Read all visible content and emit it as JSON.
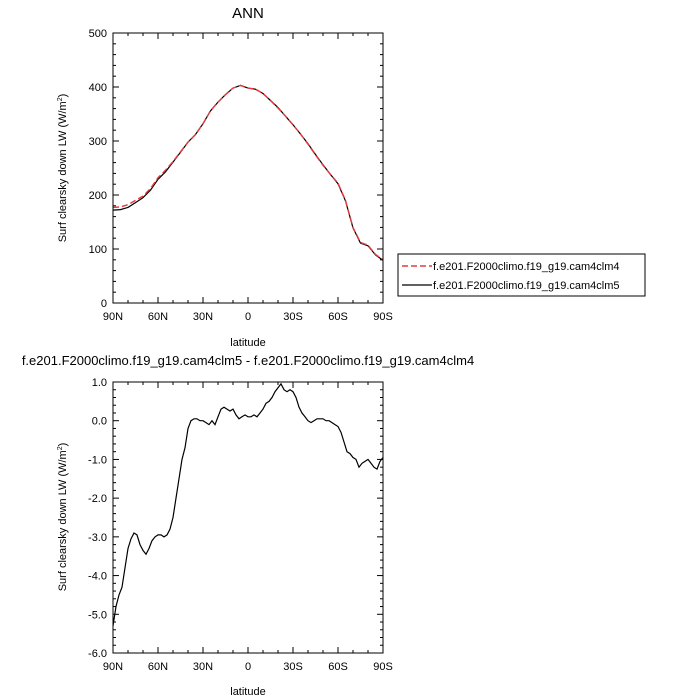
{
  "chart_data": [
    {
      "type": "line",
      "title": "ANN",
      "xlabel": "latitude",
      "ylabel_main": "Surf clearsky down LW (W/m",
      "ylabel_sup": "2",
      "ylabel_close": ")",
      "xlim": [
        90,
        -90
      ],
      "ylim": [
        0,
        500
      ],
      "x_ticks": [
        {
          "v": 90,
          "label": "90N"
        },
        {
          "v": 60,
          "label": "60N"
        },
        {
          "v": 30,
          "label": "30N"
        },
        {
          "v": 0,
          "label": "0"
        },
        {
          "v": -30,
          "label": "30S"
        },
        {
          "v": -60,
          "label": "60S"
        },
        {
          "v": -90,
          "label": "90S"
        }
      ],
      "y_ticks": [
        {
          "v": 0,
          "label": "0"
        },
        {
          "v": 100,
          "label": "100"
        },
        {
          "v": 200,
          "label": "200"
        },
        {
          "v": 300,
          "label": "300"
        },
        {
          "v": 400,
          "label": "400"
        },
        {
          "v": 500,
          "label": "500"
        }
      ],
      "legend": {
        "position": "right"
      },
      "series": [
        {
          "name": "f.e201.F2000climo.f19_g19.cam4clm4",
          "color": "#e8383d",
          "style": "dashed",
          "x": [
            90,
            85,
            80,
            75,
            70,
            65,
            60,
            55,
            50,
            45,
            40,
            35,
            30,
            25,
            20,
            15,
            10,
            5,
            0,
            -5,
            -10,
            -15,
            -20,
            -25,
            -30,
            -35,
            -40,
            -45,
            -50,
            -55,
            -60,
            -65,
            -70,
            -75,
            -80,
            -85,
            -90
          ],
          "y": [
            177,
            178,
            182,
            190,
            198,
            212,
            232,
            246,
            262,
            280,
            298,
            312,
            332,
            356,
            372,
            386,
            398,
            403,
            398,
            396,
            388,
            375,
            361,
            346,
            330,
            313,
            294,
            274,
            255,
            238,
            222,
            190,
            140,
            112,
            107,
            90,
            80
          ]
        },
        {
          "name": "f.e201.F2000climo.f19_g19.cam4clm5",
          "color": "#000000",
          "style": "solid",
          "x": [
            90,
            85,
            80,
            75,
            70,
            65,
            60,
            55,
            50,
            45,
            40,
            35,
            30,
            25,
            20,
            15,
            10,
            5,
            0,
            -5,
            -10,
            -15,
            -20,
            -25,
            -30,
            -35,
            -40,
            -45,
            -50,
            -55,
            -60,
            -65,
            -70,
            -75,
            -80,
            -85,
            -90
          ],
          "y": [
            172,
            173,
            177,
            186,
            195,
            209,
            229,
            243,
            261,
            279,
            298,
            312,
            332,
            356,
            372,
            386,
            398,
            403,
            398,
            396,
            388,
            375,
            362,
            346,
            330,
            313,
            295,
            275,
            256,
            238,
            221,
            189,
            139,
            111,
            106,
            89,
            79
          ]
        }
      ]
    },
    {
      "type": "line",
      "title": "f.e201.F2000climo.f19_g19.cam4clm5 - f.e201.F2000climo.f19_g19.cam4clm4",
      "xlabel": "latitude",
      "ylabel_main": "Surf clearsky down LW (W/m",
      "ylabel_sup": "2",
      "ylabel_close": ")",
      "xlim": [
        90,
        -90
      ],
      "ylim": [
        -6,
        1
      ],
      "x_ticks": [
        {
          "v": 90,
          "label": "90N"
        },
        {
          "v": 60,
          "label": "60N"
        },
        {
          "v": 30,
          "label": "30N"
        },
        {
          "v": 0,
          "label": "0"
        },
        {
          "v": -30,
          "label": "30S"
        },
        {
          "v": -60,
          "label": "60S"
        },
        {
          "v": -90,
          "label": "90S"
        }
      ],
      "y_ticks": [
        {
          "v": -6,
          "label": "-6.0"
        },
        {
          "v": -5,
          "label": "-5.0"
        },
        {
          "v": -4,
          "label": "-4.0"
        },
        {
          "v": -3,
          "label": "-3.0"
        },
        {
          "v": -2,
          "label": "-2.0"
        },
        {
          "v": -1,
          "label": "-1.0"
        },
        {
          "v": 0,
          "label": "0.0"
        },
        {
          "v": 1,
          "label": "1.0"
        }
      ],
      "series": [
        {
          "color": "#000000",
          "style": "solid",
          "x": [
            90,
            88,
            86,
            84,
            82,
            80,
            78,
            76,
            74,
            72,
            70,
            68,
            66,
            64,
            62,
            60,
            58,
            56,
            54,
            52,
            50,
            48,
            46,
            44,
            42,
            40,
            38,
            36,
            34,
            32,
            30,
            28,
            26,
            24,
            22,
            20,
            18,
            16,
            14,
            12,
            10,
            8,
            6,
            4,
            2,
            0,
            -2,
            -4,
            -6,
            -8,
            -10,
            -12,
            -14,
            -16,
            -18,
            -20,
            -22,
            -24,
            -26,
            -28,
            -30,
            -32,
            -34,
            -36,
            -38,
            -40,
            -42,
            -44,
            -46,
            -48,
            -50,
            -52,
            -54,
            -56,
            -58,
            -60,
            -62,
            -64,
            -66,
            -68,
            -70,
            -72,
            -74,
            -76,
            -78,
            -80,
            -82,
            -84,
            -86,
            -88,
            -90
          ],
          "y": [
            -5.3,
            -4.8,
            -4.5,
            -4.3,
            -3.8,
            -3.3,
            -3.05,
            -2.9,
            -2.95,
            -3.2,
            -3.35,
            -3.45,
            -3.3,
            -3.1,
            -3.0,
            -2.95,
            -2.95,
            -3.0,
            -2.95,
            -2.8,
            -2.5,
            -2.0,
            -1.5,
            -1.0,
            -0.7,
            -0.2,
            0.0,
            0.05,
            0.05,
            0.0,
            0.0,
            -0.05,
            -0.1,
            0.0,
            -0.1,
            0.1,
            0.3,
            0.35,
            0.3,
            0.25,
            0.3,
            0.15,
            0.05,
            0.1,
            0.15,
            0.1,
            0.1,
            0.15,
            0.1,
            0.2,
            0.3,
            0.45,
            0.5,
            0.6,
            0.75,
            0.85,
            0.95,
            0.8,
            0.75,
            0.8,
            0.75,
            0.6,
            0.35,
            0.2,
            0.1,
            0.0,
            -0.05,
            0.0,
            0.05,
            0.05,
            0.05,
            0.0,
            0.0,
            -0.05,
            -0.1,
            -0.15,
            -0.3,
            -0.55,
            -0.8,
            -0.85,
            -0.95,
            -1.0,
            -1.2,
            -1.1,
            -1.05,
            -1.0,
            -1.1,
            -1.2,
            -1.25,
            -1.05,
            -0.95
          ]
        }
      ]
    }
  ]
}
